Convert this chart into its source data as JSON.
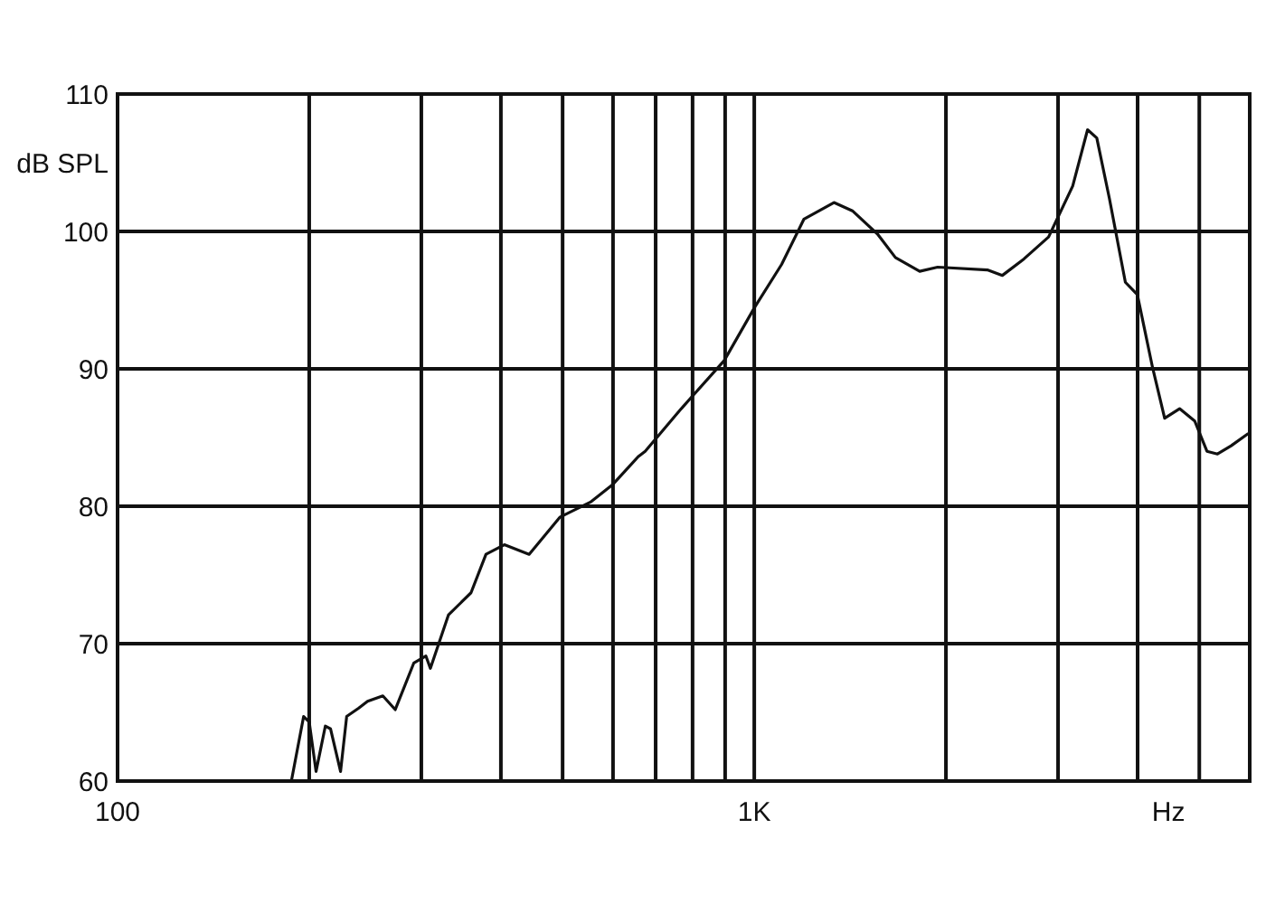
{
  "chart_data": {
    "type": "line",
    "ylabel": "dB SPL",
    "xlabel": "Hz",
    "x": [
      187.5,
      196,
      200,
      205,
      212,
      216,
      224,
      229,
      239,
      247,
      261,
      273,
      292,
      305,
      310,
      331,
      359,
      379,
      405,
      443,
      495,
      553,
      600,
      657,
      674,
      768,
      897,
      1002,
      1104,
      1197,
      1334,
      1426,
      1562,
      1666,
      1819,
      1941,
      2323,
      2453,
      2652,
      2899,
      3163,
      3338,
      3451,
      3612,
      3827,
      3996,
      4222,
      4411,
      4656,
      4918,
      5140,
      5340,
      5610,
      5970
    ],
    "series": [
      {
        "color": "#111111",
        "values": [
          60,
          64.7,
          64.3,
          60.7,
          64.0,
          63.8,
          60.7,
          64.7,
          65.3,
          65.8,
          66.2,
          65.2,
          68.6,
          69.1,
          68.2,
          72.1,
          73.7,
          76.5,
          77.2,
          76.5,
          79.2,
          80.3,
          81.6,
          83.6,
          84.0,
          87.1,
          90.6,
          94.5,
          97.6,
          100.9,
          102.1,
          101.5,
          99.8,
          98.1,
          97.1,
          97.4,
          97.2,
          96.8,
          98.0,
          99.6,
          103.3,
          107.4,
          106.8,
          102.4,
          96.3,
          95.4,
          90.1,
          86.4,
          87.1,
          86.2,
          84.0,
          83.8,
          84.4,
          85.3
        ]
      }
    ],
    "log": "x",
    "xlim": [
      100,
      6000
    ],
    "xticks": [
      100,
      {
        "value": 200,
        "label": null
      },
      {
        "value": 300,
        "label": null
      },
      {
        "value": 400,
        "label": null
      },
      {
        "value": 500,
        "label": null
      },
      {
        "value": 600,
        "label": null
      },
      {
        "value": 700,
        "label": null
      },
      {
        "value": 800,
        "label": null
      },
      {
        "value": 900,
        "label": null
      },
      {
        "value": 1000,
        "label": "1K"
      },
      {
        "value": 2000,
        "label": null
      },
      {
        "value": 3000,
        "label": null
      },
      {
        "value": 4000,
        "label": null
      },
      {
        "value": 5000,
        "label": null
      }
    ],
    "ylim": [
      60,
      110
    ],
    "yticks": [
      60,
      70,
      80,
      90,
      100,
      110
    ],
    "grid": true,
    "marker": "none",
    "line_style": "solid"
  }
}
